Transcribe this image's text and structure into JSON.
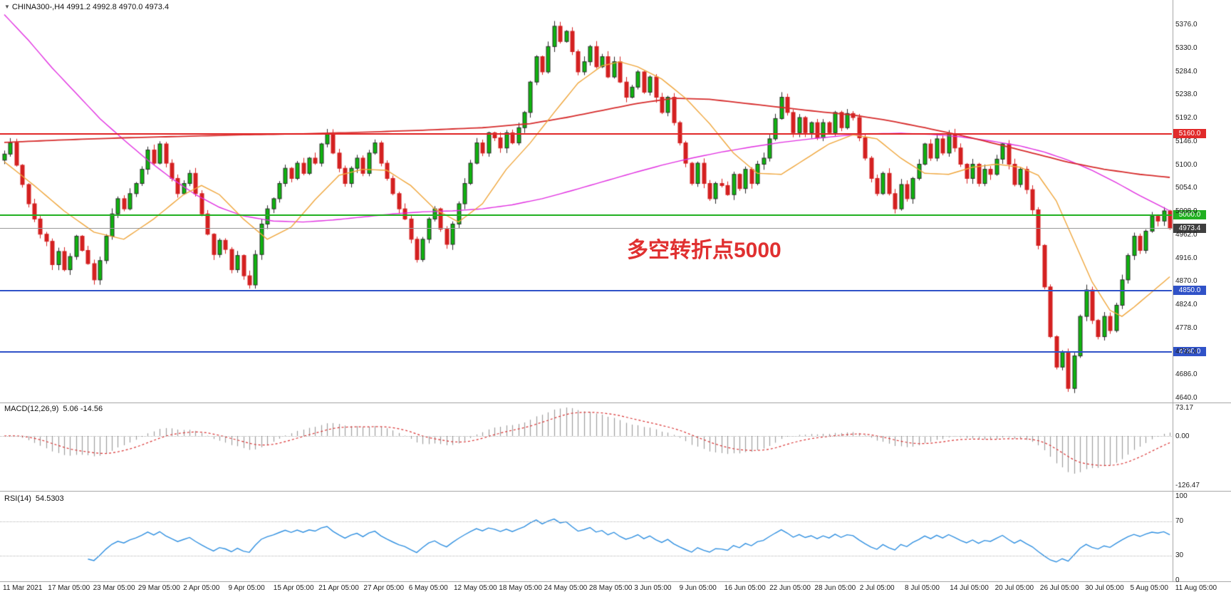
{
  "header": {
    "marker": "▼",
    "symbol_period": "CHINA300-,H4",
    "ohlc": "4991.2 4992.8 4970.0 4973.4"
  },
  "chart_data": {
    "type": "candlestick",
    "symbol": "CHINA300-",
    "timeframe": "H4",
    "title": "CHINA300-,H4",
    "ohlc_display": {
      "open": "4991.2",
      "high": "4992.8",
      "low": "4970.0",
      "close": "4973.4"
    },
    "annotation": {
      "text": "多空转折点5000",
      "color": "#e03030"
    },
    "price_axis": {
      "max": 5376,
      "min": 4640,
      "tick_step": 46,
      "labels": [
        "5376.0",
        "5330.0",
        "5284.0",
        "5238.0",
        "5192.0",
        "5146.0",
        "5100.0",
        "5054.0",
        "5008.0",
        "4962.0",
        "4916.0",
        "4870.0",
        "4824.0",
        "4778.0",
        "4732.0",
        "4686.0",
        "4640.0"
      ]
    },
    "first_open": 5108,
    "closes": [
      5120,
      5142,
      5098,
      5060,
      5022,
      4992,
      4962,
      4948,
      4902,
      4928,
      4892,
      4918,
      4958,
      4930,
      4904,
      4872,
      4910,
      4958,
      5002,
      5032,
      5012,
      5042,
      5062,
      5090,
      5128,
      5102,
      5140,
      5102,
      5072,
      5042,
      5062,
      5082,
      5042,
      5002,
      4962,
      4922,
      4950,
      4932,
      4892,
      4920,
      4880,
      4862,
      4922,
      4982,
      5012,
      5032,
      5062,
      5092,
      5072,
      5102,
      5082,
      5112,
      5102,
      5140,
      5160,
      5122,
      5092,
      5062,
      5092,
      5112,
      5082,
      5122,
      5142,
      5102,
      5072,
      5042,
      5012,
      4992,
      4952,
      4912,
      4952,
      4992,
      5012,
      4972,
      4942,
      4982,
      5022,
      5062,
      5102,
      5142,
      5122,
      5162,
      5152,
      5132,
      5162,
      5142,
      5172,
      5202,
      5262,
      5312,
      5282,
      5332,
      5372,
      5342,
      5362,
      5322,
      5282,
      5302,
      5332,
      5292,
      5312,
      5272,
      5302,
      5262,
      5232,
      5252,
      5282,
      5242,
      5272,
      5232,
      5202,
      5232,
      5182,
      5142,
      5102,
      5062,
      5102,
      5062,
      5032,
      5062,
      5058,
      5040,
      5080,
      5052,
      5090,
      5062,
      5100,
      5112,
      5150,
      5190,
      5232,
      5202,
      5162,
      5192,
      5162,
      5182,
      5152,
      5182,
      5162,
      5202,
      5172,
      5200,
      5192,
      5152,
      5112,
      5072,
      5042,
      5082,
      5042,
      5012,
      5060,
      5032,
      5072,
      5100,
      5140,
      5112,
      5150,
      5122,
      5160,
      5132,
      5100,
      5072,
      5100,
      5062,
      5090,
      5080,
      5110,
      5140,
      5100,
      5060,
      5090,
      5050,
      5010,
      4940,
      4858,
      4760,
      4700,
      4730,
      4658,
      4722,
      4800,
      4852,
      4792,
      4760,
      4800,
      4772,
      4822,
      4872,
      4920,
      4958,
      4930,
      4968,
      4998,
      4988,
      5008,
      4973.4
    ],
    "colors": {
      "candle_up": "#0fb50f",
      "candle_up_border": "#2a2a2a",
      "candle_down": "#d42020",
      "macd_histogram": "#9e9e9e",
      "macd_signal": "#d83030",
      "rsi_line": "#2f8fe0"
    },
    "moving_averages": [
      {
        "name": "ma-long-magenta",
        "color": "#e02ee0",
        "width": 1.4,
        "points": [
          [
            0,
            5395
          ],
          [
            4,
            5345
          ],
          [
            8,
            5290
          ],
          [
            12,
            5240
          ],
          [
            16,
            5190
          ],
          [
            20,
            5148
          ],
          [
            24,
            5108
          ],
          [
            28,
            5072
          ],
          [
            32,
            5040
          ],
          [
            36,
            5015
          ],
          [
            40,
            4998
          ],
          [
            45,
            4988
          ],
          [
            50,
            4986
          ],
          [
            55,
            4990
          ],
          [
            60,
            4996
          ],
          [
            65,
            5002
          ],
          [
            70,
            5006
          ],
          [
            75,
            5008
          ],
          [
            80,
            5012
          ],
          [
            85,
            5020
          ],
          [
            90,
            5032
          ],
          [
            95,
            5048
          ],
          [
            100,
            5065
          ],
          [
            105,
            5082
          ],
          [
            110,
            5098
          ],
          [
            115,
            5112
          ],
          [
            120,
            5124
          ],
          [
            125,
            5134
          ],
          [
            130,
            5143
          ],
          [
            135,
            5150
          ],
          [
            140,
            5156
          ],
          [
            145,
            5160
          ],
          [
            150,
            5161
          ],
          [
            155,
            5159
          ],
          [
            160,
            5154
          ],
          [
            165,
            5146
          ],
          [
            170,
            5136
          ],
          [
            174,
            5124
          ],
          [
            178,
            5108
          ],
          [
            182,
            5088
          ],
          [
            186,
            5064
          ],
          [
            190,
            5038
          ],
          [
            193,
            5020
          ],
          [
            195,
            5008
          ]
        ]
      },
      {
        "name": "ma-slow-red",
        "color": "#d62b2b",
        "width": 1.8,
        "points": [
          [
            0,
            5143
          ],
          [
            10,
            5148
          ],
          [
            20,
            5152
          ],
          [
            30,
            5155
          ],
          [
            40,
            5158
          ],
          [
            50,
            5160
          ],
          [
            60,
            5163
          ],
          [
            70,
            5167
          ],
          [
            80,
            5172
          ],
          [
            88,
            5180
          ],
          [
            94,
            5192
          ],
          [
            100,
            5206
          ],
          [
            106,
            5220
          ],
          [
            112,
            5230
          ],
          [
            118,
            5228
          ],
          [
            124,
            5220
          ],
          [
            130,
            5212
          ],
          [
            136,
            5204
          ],
          [
            142,
            5197
          ],
          [
            148,
            5186
          ],
          [
            154,
            5172
          ],
          [
            160,
            5157
          ],
          [
            166,
            5140
          ],
          [
            172,
            5122
          ],
          [
            178,
            5104
          ],
          [
            184,
            5090
          ],
          [
            190,
            5080
          ],
          [
            195,
            5074
          ]
        ]
      },
      {
        "name": "ma-fast-orange",
        "color": "#efa53a",
        "width": 1.4,
        "points": [
          [
            0,
            5105
          ],
          [
            5,
            5058
          ],
          [
            10,
            5008
          ],
          [
            15,
            4966
          ],
          [
            20,
            4952
          ],
          [
            25,
            4992
          ],
          [
            30,
            5040
          ],
          [
            33,
            5058
          ],
          [
            36,
            5040
          ],
          [
            40,
            4992
          ],
          [
            44,
            4952
          ],
          [
            48,
            4976
          ],
          [
            52,
            5030
          ],
          [
            56,
            5078
          ],
          [
            60,
            5090
          ],
          [
            64,
            5088
          ],
          [
            68,
            5058
          ],
          [
            72,
            5012
          ],
          [
            76,
            4986
          ],
          [
            80,
            5022
          ],
          [
            84,
            5090
          ],
          [
            88,
            5142
          ],
          [
            92,
            5202
          ],
          [
            96,
            5260
          ],
          [
            100,
            5294
          ],
          [
            103,
            5302
          ],
          [
            106,
            5292
          ],
          [
            110,
            5268
          ],
          [
            114,
            5230
          ],
          [
            118,
            5180
          ],
          [
            122,
            5122
          ],
          [
            126,
            5082
          ],
          [
            130,
            5080
          ],
          [
            134,
            5110
          ],
          [
            138,
            5140
          ],
          [
            142,
            5158
          ],
          [
            146,
            5150
          ],
          [
            150,
            5112
          ],
          [
            154,
            5082
          ],
          [
            158,
            5080
          ],
          [
            162,
            5094
          ],
          [
            166,
            5100
          ],
          [
            170,
            5094
          ],
          [
            173,
            5078
          ],
          [
            176,
            5028
          ],
          [
            179,
            4948
          ],
          [
            182,
            4868
          ],
          [
            185,
            4812
          ],
          [
            187,
            4800
          ],
          [
            189,
            4818
          ],
          [
            191,
            4838
          ],
          [
            193,
            4858
          ],
          [
            195,
            4878
          ]
        ]
      }
    ],
    "horizontal_lines": [
      {
        "value": 5160.0,
        "label": "5160.0",
        "line_color": "#e12a2a",
        "tag_color": "#e12a2a",
        "thickness": 2
      },
      {
        "value": 5000.0,
        "label": "5000.0",
        "line_color": "#21b021",
        "tag_color": "#21b021",
        "thickness": 2
      },
      {
        "value": 4973.4,
        "label": "4973.4",
        "line_color": "#9a9a9a",
        "tag_color": "#3f3f3f",
        "thickness": 1
      },
      {
        "value": 4850.0,
        "label": "4850.0",
        "line_color": "#3052c8",
        "tag_color": "#3052c8",
        "thickness": 2
      },
      {
        "value": 4730.0,
        "label": "4730.0",
        "line_color": "#3052c8",
        "tag_color": "#3052c8",
        "thickness": 2
      }
    ],
    "indicators": [
      {
        "type": "macd",
        "label": "MACD(12,26,9)",
        "values_text": "5.06 -14.56",
        "fast": 12,
        "slow": 26,
        "signal": 9,
        "axis_labels": [
          "73.17",
          "0.00",
          "-126.47"
        ],
        "axis_max": 73.17,
        "axis_min": -126.47
      },
      {
        "type": "rsi",
        "label": "RSI(14)",
        "value_text": "54.5303",
        "period": 14,
        "axis_labels": [
          "100",
          "70",
          "30",
          "0"
        ],
        "levels": [
          70,
          30
        ]
      }
    ],
    "x_axis": {
      "labels": [
        "11 Mar 2021",
        "17 Mar 05:00",
        "23 Mar 05:00",
        "29 Mar 05:00",
        "2 Apr 05:00",
        "9 Apr 05:00",
        "15 Apr 05:00",
        "21 Apr 05:00",
        "27 Apr 05:00",
        "6 May 05:00",
        "12 May 05:00",
        "18 May 05:00",
        "24 May 05:00",
        "28 May 05:00",
        "3 Jun 05:00",
        "9 Jun 05:00",
        "16 Jun 05:00",
        "22 Jun 05:00",
        "28 Jun 05:00",
        "2 Jul 05:00",
        "8 Jul 05:00",
        "14 Jul 05:00",
        "20 Jul 05:00",
        "26 Jul 05:00",
        "30 Jul 05:00",
        "5 Aug 05:00",
        "11 Aug 05:00"
      ]
    }
  }
}
